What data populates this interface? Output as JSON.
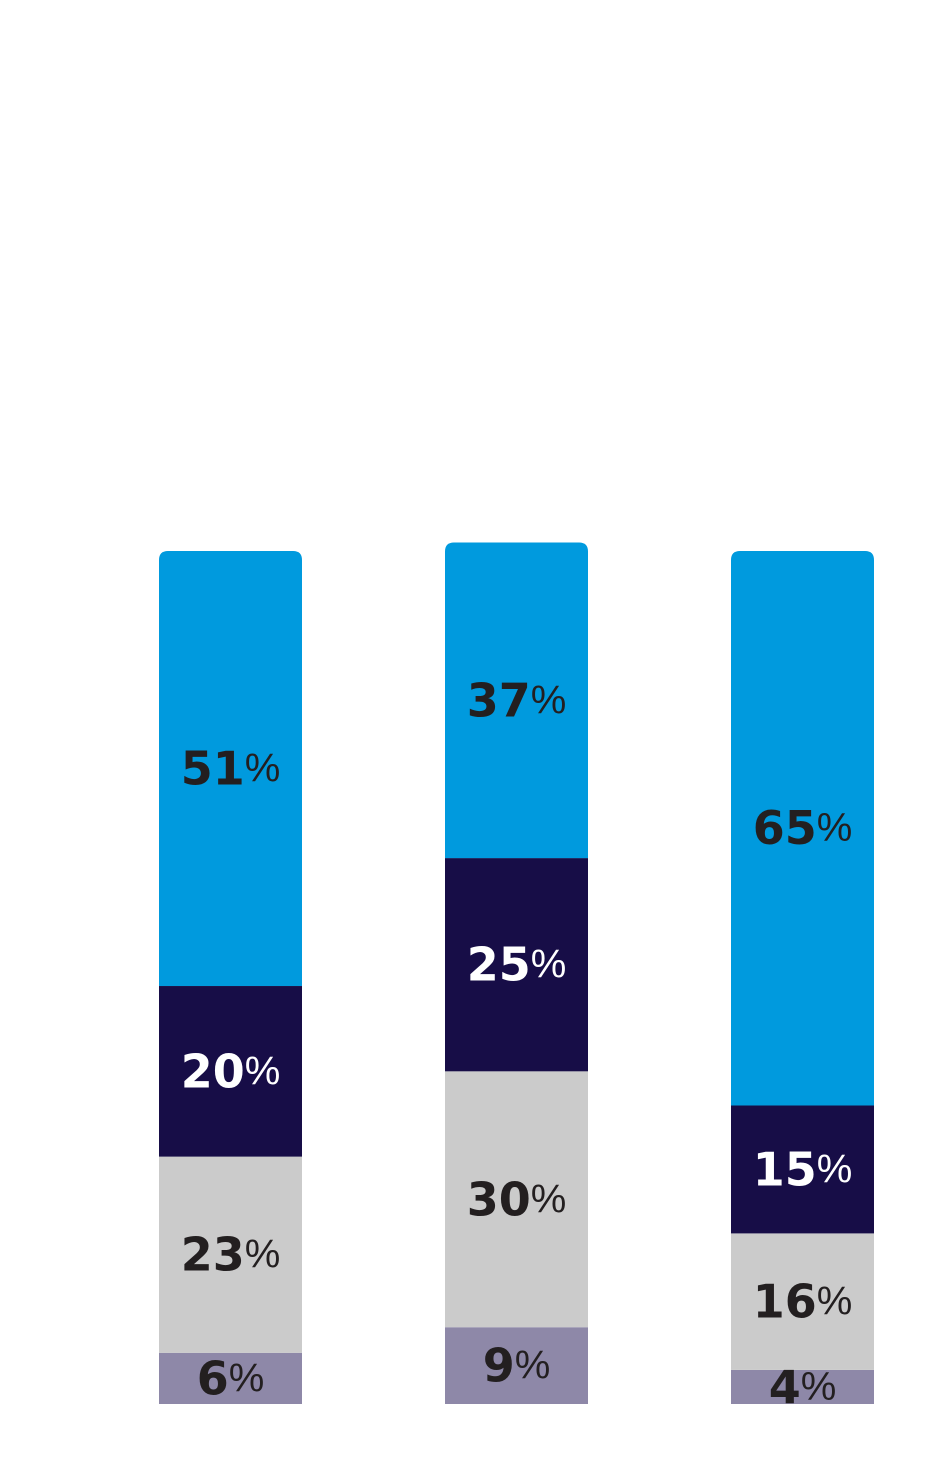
{
  "chart_data": {
    "type": "bar",
    "stacked": true,
    "categories": [
      "",
      "",
      ""
    ],
    "unit": "%",
    "series": [
      {
        "key": "s4",
        "values": [
          6,
          9,
          4
        ],
        "color": "#8E88A8",
        "label_color": "#231F20"
      },
      {
        "key": "s3",
        "values": [
          23,
          30,
          16
        ],
        "color": "#CBCBCB",
        "label_color": "#231F20"
      },
      {
        "key": "s2",
        "values": [
          20,
          25,
          15
        ],
        "color": "#170D47",
        "label_color": "#FFFFFF"
      },
      {
        "key": "s1",
        "values": [
          51,
          37,
          65
        ],
        "color": "#009ADE",
        "label_color": "#231F20"
      }
    ],
    "ylim": [
      0,
      100
    ],
    "grid": false,
    "legend": "none"
  }
}
